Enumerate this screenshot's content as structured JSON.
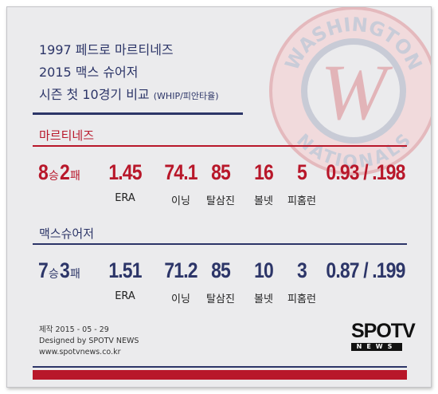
{
  "title": {
    "lines": [
      "1997 페드로 마르티네즈",
      "2015 맥스 슈어저",
      "시즌 첫 10경기 비교"
    ],
    "note": "(WHIP/피안타율)"
  },
  "logo": {
    "top": "WASHINGTON",
    "bottom": "NATIONALS",
    "letter": "W"
  },
  "stat_labels": [
    "ERA",
    "이닝",
    "탈삼진",
    "볼넷",
    "피홈런"
  ],
  "players": [
    {
      "name": "마르티네즈",
      "wins": "8",
      "win_unit": "승",
      "losses": "2",
      "loss_unit": "패",
      "stats": [
        "1.45",
        "74.1",
        "85",
        "16",
        "5"
      ],
      "whip_avg": "0.93 / .198"
    },
    {
      "name": "맥스슈어저",
      "wins": "7",
      "win_unit": "승",
      "losses": "3",
      "loss_unit": "패",
      "stats": [
        "1.51",
        "71.2",
        "85",
        "10",
        "3"
      ],
      "whip_avg": "0.87 / .199"
    }
  ],
  "footer": {
    "lines": [
      "제작 2015 - 05 - 29",
      "Designed by SPOTV NEWS",
      "www.spotvnews.co.kr"
    ],
    "brand": "SPOTV",
    "brand_sub": "NEWS"
  }
}
